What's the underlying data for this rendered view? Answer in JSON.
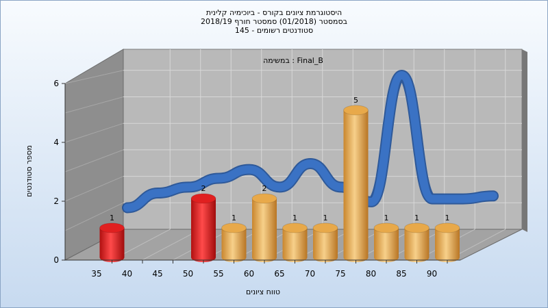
{
  "chart_data": {
    "type": "bar",
    "title_lines": [
      "היסטוגרמת ציונים בקורס - ביוכימיה קלינית",
      "בסמסטר  (01/2018)  סמסטר חורף 2018/19",
      "סטודנטים רשומים - 145"
    ],
    "subtitle": "במשימה : Final_B",
    "xlabel": "טווח ציונים",
    "ylabel": "מספר סטודנטים",
    "x_ticks": [
      "35",
      "40",
      "45",
      "50",
      "55",
      "60",
      "65",
      "70",
      "75",
      "80",
      "85",
      "90"
    ],
    "y_ticks": [
      "0",
      "2",
      "4",
      "6"
    ],
    "ylim": [
      0,
      6
    ],
    "bins": [
      {
        "x": 35,
        "value": 1,
        "label": "1",
        "color": "#e02020"
      },
      {
        "x": 50,
        "value": 2,
        "label": "2",
        "color": "#e02020"
      },
      {
        "x": 55,
        "value": 1,
        "label": "1",
        "color": "#e8a94a"
      },
      {
        "x": 60,
        "value": 2,
        "label": "2",
        "color": "#e8a94a"
      },
      {
        "x": 65,
        "value": 1,
        "label": "1",
        "color": "#e8a94a"
      },
      {
        "x": 70,
        "value": 1,
        "label": "1",
        "color": "#e8a94a"
      },
      {
        "x": 75,
        "value": 5,
        "label": "5",
        "color": "#e8a94a"
      },
      {
        "x": 80,
        "value": 1,
        "label": "1",
        "color": "#e8a94a"
      },
      {
        "x": 85,
        "value": 1,
        "label": "1",
        "color": "#e8a94a"
      },
      {
        "x": 90,
        "value": 1,
        "label": "1",
        "color": "#e8a94a"
      }
    ],
    "trend_line": {
      "color": "#3a72c4",
      "x": [
        35,
        40,
        45,
        50,
        55,
        60,
        65,
        70,
        75,
        80,
        85,
        90,
        95
      ],
      "y": [
        0.5,
        1,
        1.2,
        1.5,
        1.8,
        1.2,
        2,
        1.2,
        0.7,
        5,
        0.8,
        0.8,
        0.9
      ]
    },
    "grid": true,
    "legend": "none"
  }
}
